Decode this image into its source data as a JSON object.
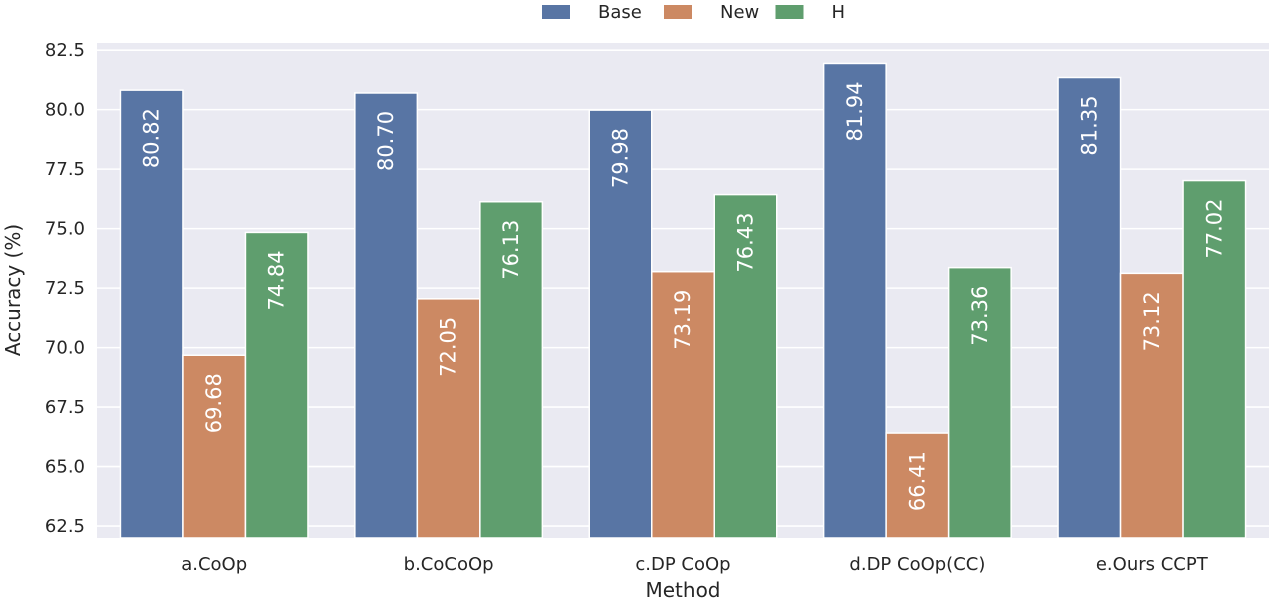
{
  "chart_data": {
    "type": "bar",
    "categories": [
      "a.CoOp",
      "b.CoCoOp",
      "c.DP CoOp",
      "d.DP CoOp(CC)",
      "e.Ours CCPT"
    ],
    "series": [
      {
        "name": "Base",
        "color": "#5875a4",
        "values": [
          80.82,
          80.7,
          79.98,
          81.94,
          81.35
        ],
        "labels": [
          "80.82",
          "80.70",
          "79.98",
          "81.94",
          "81.35"
        ]
      },
      {
        "name": "New",
        "color": "#cc8963",
        "values": [
          69.68,
          72.05,
          73.19,
          66.41,
          73.12
        ],
        "labels": [
          "69.68",
          "72.05",
          "73.19",
          "66.41",
          "73.12"
        ]
      },
      {
        "name": "H",
        "color": "#5f9e6e",
        "values": [
          74.84,
          76.13,
          76.43,
          73.36,
          77.02
        ],
        "labels": [
          "74.84",
          "76.13",
          "76.43",
          "73.36",
          "77.02"
        ]
      }
    ],
    "xlabel": "Method",
    "ylabel": "Accuracy (%)",
    "ylim": [
      62.0,
      82.8
    ],
    "yticks": [
      62.5,
      65.0,
      67.5,
      70.0,
      72.5,
      75.0,
      77.5,
      80.0,
      82.5
    ],
    "ytick_labels": [
      "62.5",
      "65.0",
      "67.5",
      "70.0",
      "72.5",
      "75.0",
      "77.5",
      "80.0",
      "82.5"
    ],
    "grid": true,
    "legend_position": "top-center",
    "background_color": "#eaeaf2",
    "grid_color": "#ffffff"
  }
}
